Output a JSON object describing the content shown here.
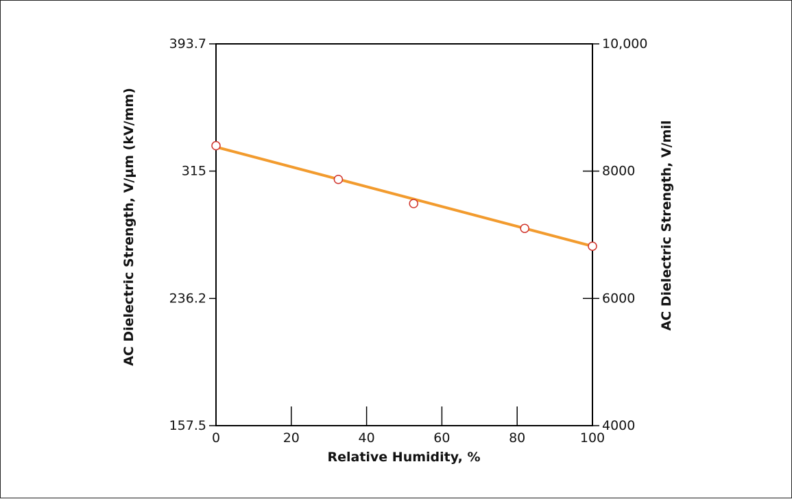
{
  "chart_data": {
    "type": "line",
    "xlabel": "Relative Humidity, %",
    "ylabel_left": "AC Dielectric Strength, V/µm (kV/mm)",
    "ylabel_right": "AC Dielectric Strength, V/mil",
    "xlim": [
      0,
      100
    ],
    "ylim_right": [
      4000,
      10000
    ],
    "ylim_left": [
      157.5,
      393.7
    ],
    "x_ticks": [
      "0",
      "20",
      "40",
      "60",
      "80",
      "100"
    ],
    "y_left_ticks": [
      "157.5",
      "236.2",
      "315",
      "393.7"
    ],
    "y_right_ticks": [
      "4000",
      "6000",
      "8000",
      "10,000"
    ],
    "x_tick_values": [
      0,
      20,
      40,
      60,
      80,
      100
    ],
    "y_left_tick_values": [
      157.5,
      236.2,
      315,
      393.7
    ],
    "y_right_tick_values": [
      4000,
      6000,
      8000,
      10000
    ],
    "grid": false,
    "series": [
      {
        "points": [
          {
            "x": 0,
            "y": 8400
          },
          {
            "x": 32.5,
            "y": 7870
          },
          {
            "x": 52.5,
            "y": 7490
          },
          {
            "x": 82,
            "y": 7100
          },
          {
            "x": 100,
            "y": 6820
          }
        ],
        "fit_line": [
          {
            "x": 0,
            "y": 8380
          },
          {
            "x": 100,
            "y": 6820
          }
        ]
      }
    ],
    "colors": {
      "line": "#f29b2e",
      "marker_stroke": "#d0342c",
      "marker_fill": "#ffffff",
      "axis": "#000000"
    }
  }
}
